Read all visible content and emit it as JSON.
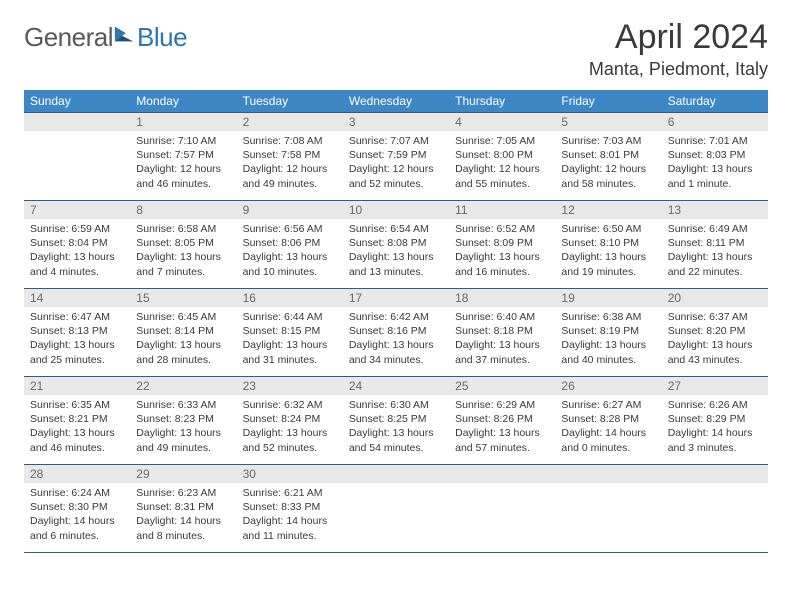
{
  "brand": {
    "name1": "General",
    "name2": "Blue"
  },
  "title": "April 2024",
  "location": "Manta, Piedmont, Italy",
  "colors": {
    "header_bg": "#3d87c7",
    "header_fg": "#ffffff",
    "daynum_bg": "#e8e8e8",
    "daynum_fg": "#6a6a6a",
    "border": "#2e5c8a",
    "text": "#3a3a3a",
    "brand_gray": "#5a5a5a",
    "brand_blue": "#2e75b6"
  },
  "weekdays": [
    "Sunday",
    "Monday",
    "Tuesday",
    "Wednesday",
    "Thursday",
    "Friday",
    "Saturday"
  ],
  "weeks": [
    [
      {
        "empty": true
      },
      {
        "n": "1",
        "sr": "7:10 AM",
        "ss": "7:57 PM",
        "dl": "12 hours and 46 minutes."
      },
      {
        "n": "2",
        "sr": "7:08 AM",
        "ss": "7:58 PM",
        "dl": "12 hours and 49 minutes."
      },
      {
        "n": "3",
        "sr": "7:07 AM",
        "ss": "7:59 PM",
        "dl": "12 hours and 52 minutes."
      },
      {
        "n": "4",
        "sr": "7:05 AM",
        "ss": "8:00 PM",
        "dl": "12 hours and 55 minutes."
      },
      {
        "n": "5",
        "sr": "7:03 AM",
        "ss": "8:01 PM",
        "dl": "12 hours and 58 minutes."
      },
      {
        "n": "6",
        "sr": "7:01 AM",
        "ss": "8:03 PM",
        "dl": "13 hours and 1 minute."
      }
    ],
    [
      {
        "n": "7",
        "sr": "6:59 AM",
        "ss": "8:04 PM",
        "dl": "13 hours and 4 minutes."
      },
      {
        "n": "8",
        "sr": "6:58 AM",
        "ss": "8:05 PM",
        "dl": "13 hours and 7 minutes."
      },
      {
        "n": "9",
        "sr": "6:56 AM",
        "ss": "8:06 PM",
        "dl": "13 hours and 10 minutes."
      },
      {
        "n": "10",
        "sr": "6:54 AM",
        "ss": "8:08 PM",
        "dl": "13 hours and 13 minutes."
      },
      {
        "n": "11",
        "sr": "6:52 AM",
        "ss": "8:09 PM",
        "dl": "13 hours and 16 minutes."
      },
      {
        "n": "12",
        "sr": "6:50 AM",
        "ss": "8:10 PM",
        "dl": "13 hours and 19 minutes."
      },
      {
        "n": "13",
        "sr": "6:49 AM",
        "ss": "8:11 PM",
        "dl": "13 hours and 22 minutes."
      }
    ],
    [
      {
        "n": "14",
        "sr": "6:47 AM",
        "ss": "8:13 PM",
        "dl": "13 hours and 25 minutes."
      },
      {
        "n": "15",
        "sr": "6:45 AM",
        "ss": "8:14 PM",
        "dl": "13 hours and 28 minutes."
      },
      {
        "n": "16",
        "sr": "6:44 AM",
        "ss": "8:15 PM",
        "dl": "13 hours and 31 minutes."
      },
      {
        "n": "17",
        "sr": "6:42 AM",
        "ss": "8:16 PM",
        "dl": "13 hours and 34 minutes."
      },
      {
        "n": "18",
        "sr": "6:40 AM",
        "ss": "8:18 PM",
        "dl": "13 hours and 37 minutes."
      },
      {
        "n": "19",
        "sr": "6:38 AM",
        "ss": "8:19 PM",
        "dl": "13 hours and 40 minutes."
      },
      {
        "n": "20",
        "sr": "6:37 AM",
        "ss": "8:20 PM",
        "dl": "13 hours and 43 minutes."
      }
    ],
    [
      {
        "n": "21",
        "sr": "6:35 AM",
        "ss": "8:21 PM",
        "dl": "13 hours and 46 minutes."
      },
      {
        "n": "22",
        "sr": "6:33 AM",
        "ss": "8:23 PM",
        "dl": "13 hours and 49 minutes."
      },
      {
        "n": "23",
        "sr": "6:32 AM",
        "ss": "8:24 PM",
        "dl": "13 hours and 52 minutes."
      },
      {
        "n": "24",
        "sr": "6:30 AM",
        "ss": "8:25 PM",
        "dl": "13 hours and 54 minutes."
      },
      {
        "n": "25",
        "sr": "6:29 AM",
        "ss": "8:26 PM",
        "dl": "13 hours and 57 minutes."
      },
      {
        "n": "26",
        "sr": "6:27 AM",
        "ss": "8:28 PM",
        "dl": "14 hours and 0 minutes."
      },
      {
        "n": "27",
        "sr": "6:26 AM",
        "ss": "8:29 PM",
        "dl": "14 hours and 3 minutes."
      }
    ],
    [
      {
        "n": "28",
        "sr": "6:24 AM",
        "ss": "8:30 PM",
        "dl": "14 hours and 6 minutes."
      },
      {
        "n": "29",
        "sr": "6:23 AM",
        "ss": "8:31 PM",
        "dl": "14 hours and 8 minutes."
      },
      {
        "n": "30",
        "sr": "6:21 AM",
        "ss": "8:33 PM",
        "dl": "14 hours and 11 minutes."
      },
      {
        "empty": true
      },
      {
        "empty": true
      },
      {
        "empty": true
      },
      {
        "empty": true
      }
    ]
  ],
  "labels": {
    "sunrise": "Sunrise: ",
    "sunset": "Sunset: ",
    "daylight": "Daylight: "
  }
}
